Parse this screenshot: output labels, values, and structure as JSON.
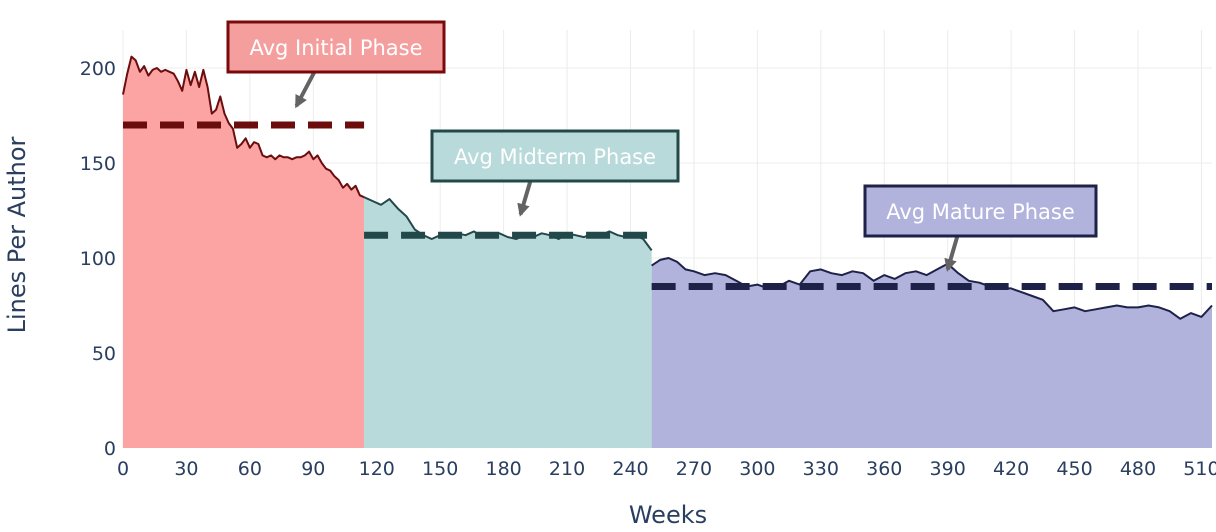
{
  "chart_data": {
    "type": "area",
    "title": "",
    "xlabel": "Weeks",
    "ylabel": "Lines Per Author",
    "xlim": [
      0,
      515
    ],
    "ylim": [
      0,
      220
    ],
    "x_ticks": [
      0,
      30,
      60,
      90,
      120,
      150,
      180,
      210,
      240,
      270,
      300,
      330,
      360,
      390,
      420,
      450,
      480,
      510
    ],
    "y_ticks": [
      0,
      50,
      100,
      150,
      200
    ],
    "grid": true,
    "legend": "none",
    "series": [
      {
        "phase": "initial",
        "fill": "#fca3a3",
        "line": "#6b0d0d",
        "x": [
          0,
          2,
          4,
          6,
          8,
          10,
          12,
          14,
          16,
          18,
          20,
          22,
          24,
          26,
          28,
          30,
          32,
          34,
          36,
          38,
          40,
          42,
          44,
          46,
          48,
          50,
          52,
          54,
          56,
          58,
          60,
          62,
          64,
          66,
          68,
          70,
          72,
          74,
          76,
          78,
          80,
          82,
          84,
          86,
          88,
          90,
          92,
          94,
          96,
          98,
          100,
          102,
          104,
          106,
          108,
          110,
          112,
          114
        ],
        "values": [
          186,
          197,
          206,
          204,
          198,
          201,
          196,
          199,
          200,
          198,
          199,
          198,
          197,
          193,
          188,
          199,
          191,
          198,
          190,
          199,
          190,
          176,
          178,
          185,
          176,
          171,
          168,
          158,
          160,
          163,
          158,
          161,
          160,
          154,
          153,
          154,
          152,
          154,
          153,
          153,
          152,
          153,
          153,
          154,
          156,
          152,
          154,
          150,
          147,
          146,
          143,
          141,
          137,
          139,
          136,
          138,
          133,
          132
        ]
      },
      {
        "phase": "midterm",
        "fill": "#b8dada",
        "line": "#23484a",
        "x": [
          114,
          118,
          122,
          126,
          130,
          134,
          138,
          142,
          146,
          150,
          154,
          158,
          162,
          166,
          170,
          174,
          178,
          182,
          186,
          190,
          194,
          198,
          202,
          206,
          210,
          214,
          218,
          222,
          226,
          230,
          234,
          238,
          242,
          246,
          250
        ],
        "values": [
          132,
          130,
          128,
          131,
          126,
          122,
          115,
          112,
          110,
          112,
          111,
          113,
          112,
          114,
          111,
          112,
          113,
          111,
          110,
          112,
          111,
          113,
          112,
          110,
          113,
          112,
          111,
          113,
          112,
          114,
          112,
          111,
          112,
          110,
          104
        ]
      },
      {
        "phase": "mature",
        "fill": "#b1b3dc",
        "line": "#1e2248",
        "x": [
          250,
          254,
          258,
          262,
          266,
          270,
          275,
          280,
          285,
          290,
          295,
          300,
          305,
          310,
          315,
          320,
          325,
          330,
          335,
          340,
          345,
          350,
          355,
          360,
          365,
          370,
          375,
          380,
          385,
          390,
          395,
          400,
          405,
          410,
          415,
          420,
          425,
          430,
          435,
          440,
          445,
          450,
          455,
          460,
          465,
          470,
          475,
          480,
          485,
          490,
          495,
          500,
          505,
          510,
          515
        ],
        "values": [
          96,
          99,
          100,
          98,
          94,
          93,
          91,
          92,
          91,
          88,
          85,
          86,
          84,
          85,
          88,
          86,
          93,
          94,
          92,
          91,
          93,
          92,
          88,
          91,
          89,
          92,
          93,
          91,
          94,
          97,
          92,
          88,
          87,
          85,
          84,
          84,
          82,
          80,
          78,
          72,
          73,
          74,
          72,
          73,
          74,
          75,
          74,
          74,
          75,
          74,
          72,
          68,
          71,
          69,
          75
        ]
      }
    ],
    "averages": [
      {
        "phase": "initial",
        "value": 170,
        "x0": 0,
        "x1": 114,
        "color": "#6b0d0d"
      },
      {
        "phase": "midterm",
        "value": 112,
        "x0": 114,
        "x1": 250,
        "color": "#23484a"
      },
      {
        "phase": "mature",
        "value": 85,
        "x0": 250,
        "x1": 515,
        "color": "#1e2248"
      }
    ],
    "annotations": [
      {
        "text": "Avg Initial Phase",
        "phase": "initial",
        "bg": "#f59e9e",
        "border": "#7a0a0a",
        "arrow_to": [
          82,
          180
        ]
      },
      {
        "text": "Avg Midterm Phase",
        "phase": "midterm",
        "bg": "#b8dada",
        "border": "#23484a",
        "arrow_to": [
          188,
          123
        ]
      },
      {
        "text": "Avg Mature Phase",
        "phase": "mature",
        "bg": "#b1b3dc",
        "border": "#1e2248",
        "arrow_to": [
          390,
          94
        ]
      }
    ]
  }
}
